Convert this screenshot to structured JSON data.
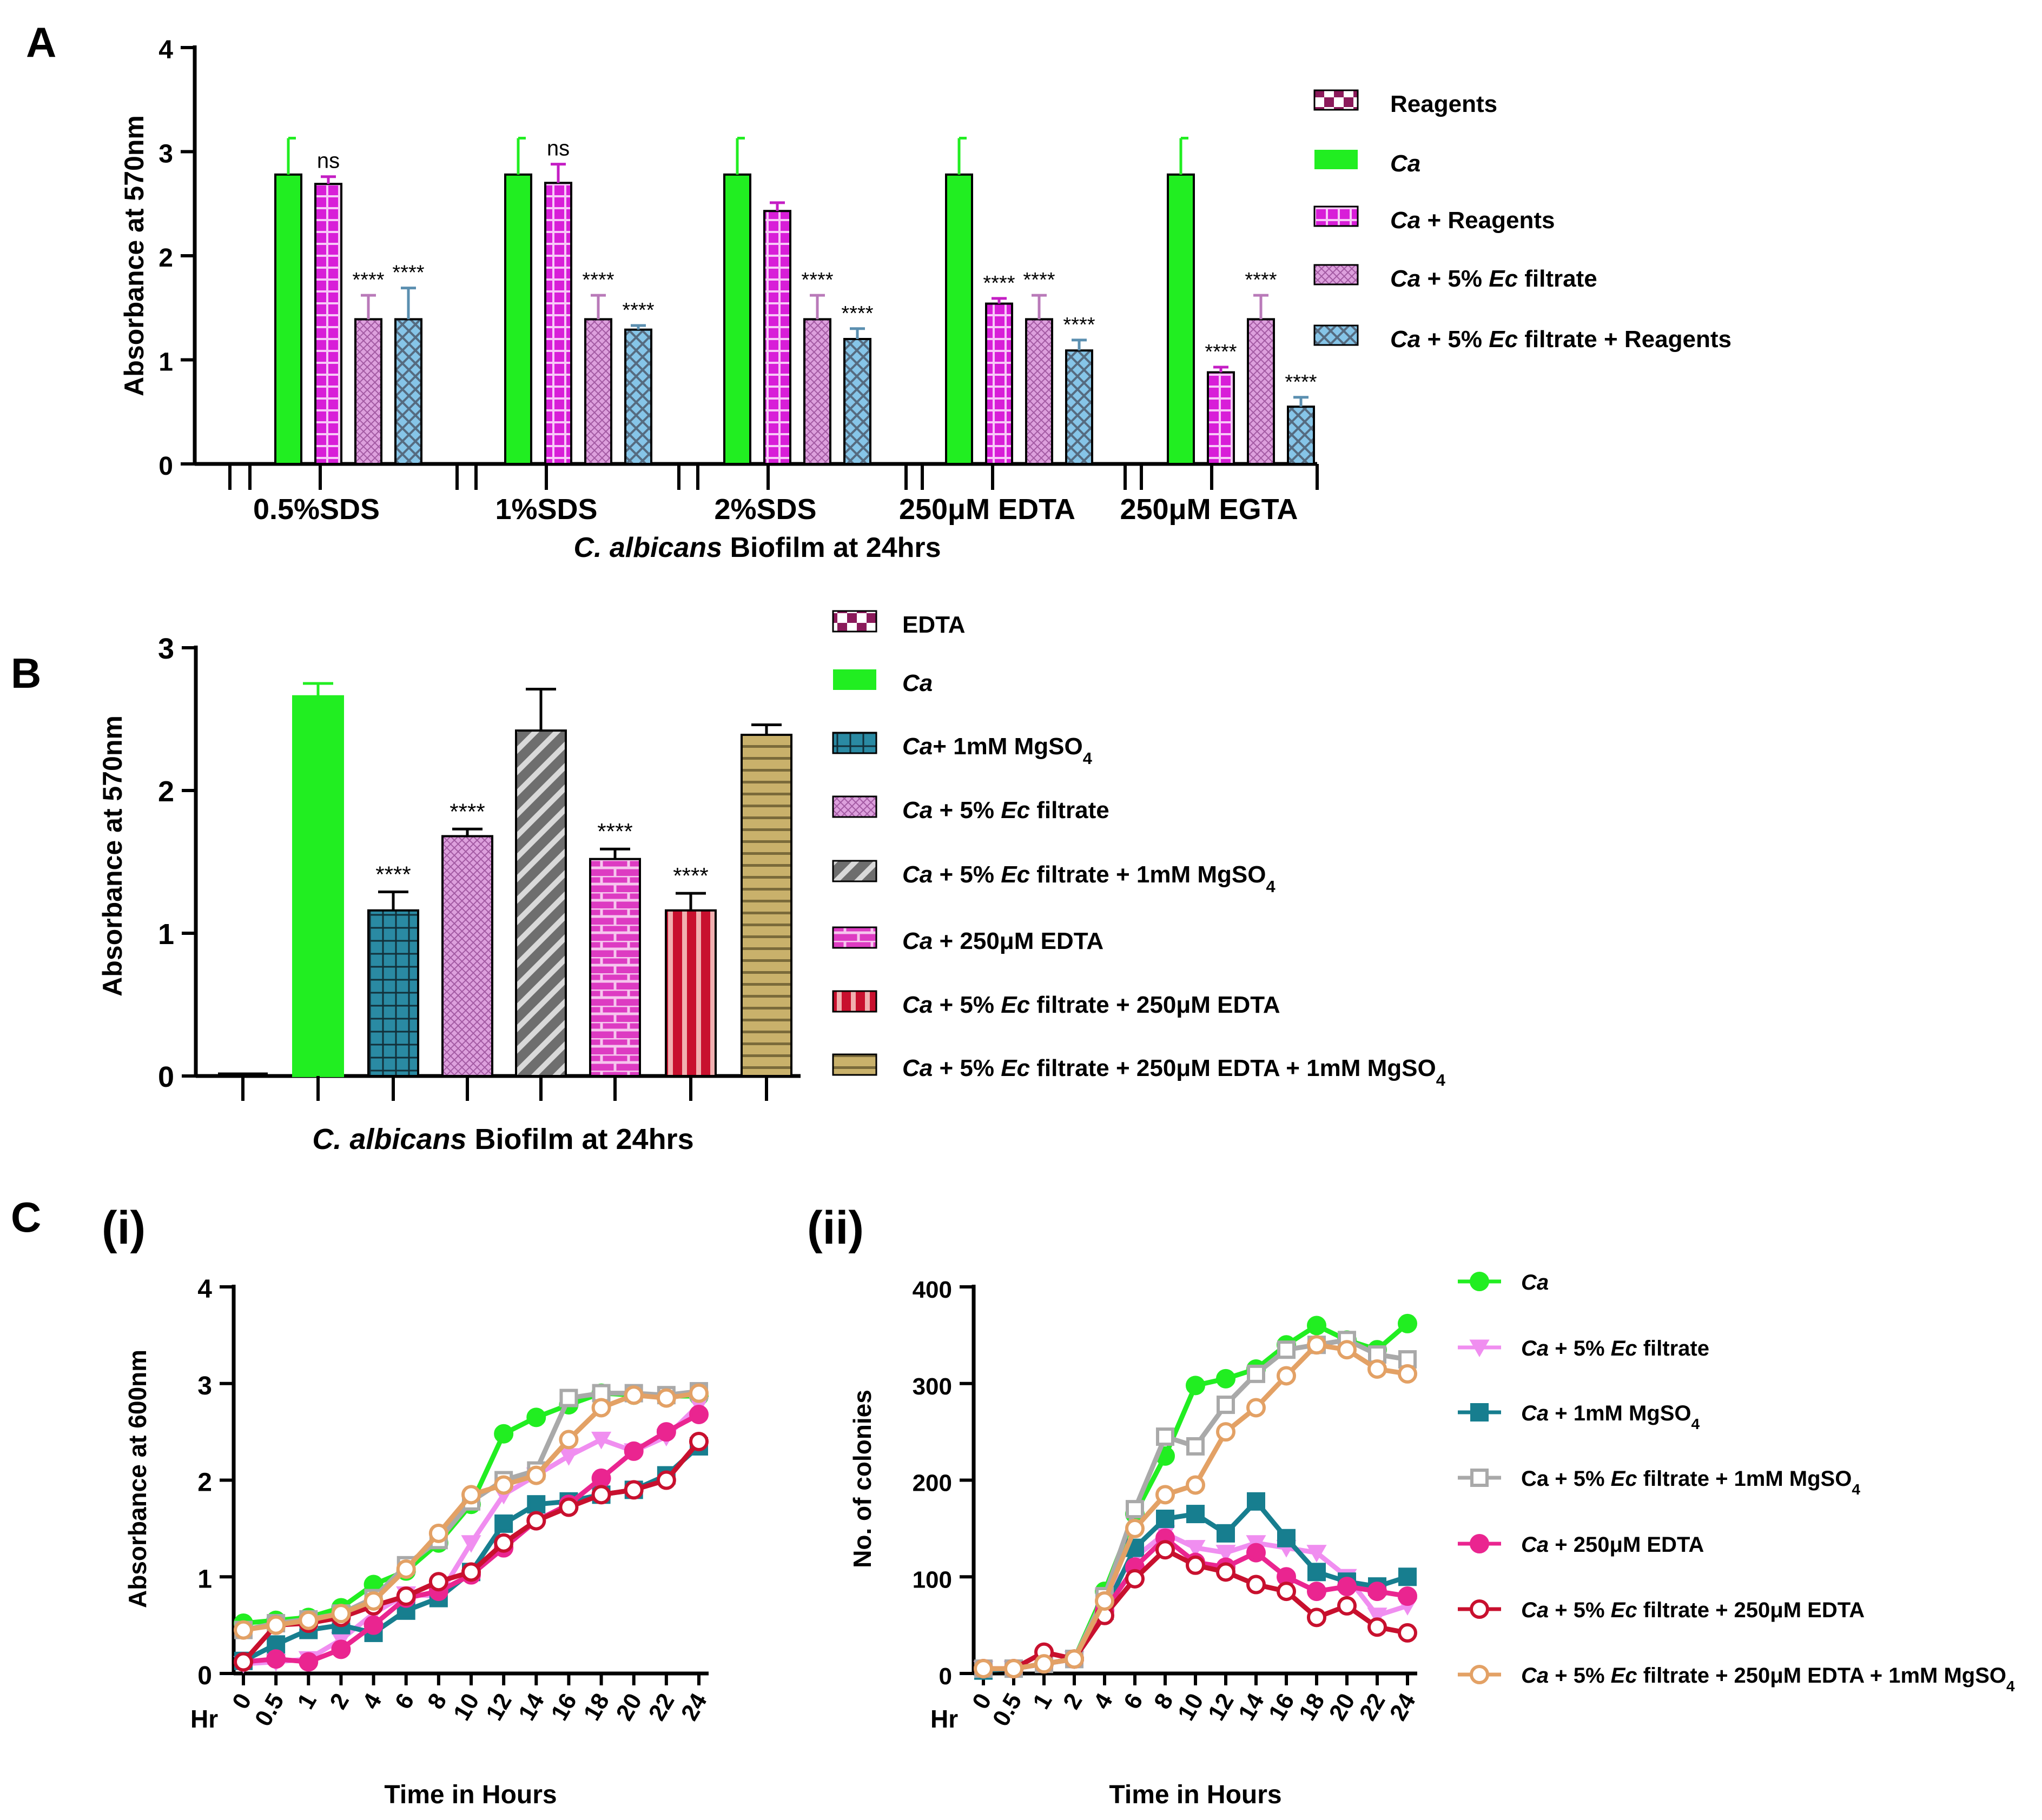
{
  "colors": {
    "ca": "#21ee21",
    "reagents": "#d81ed8",
    "filtrate": "#dda0dd",
    "filtrate_reagents": "#86c5e8",
    "mg": "#2a8aa3",
    "filtrate_mg": "#6e6e6e",
    "edta": "#dd3bc2",
    "filtrate_edta": "#c8102e",
    "all": "#c9b16b",
    "edta_blank": "#8b1a5a",
    "line_ca": "#21ee21",
    "line_filtrate": "#f08ef0",
    "line_mg": "#177e8f",
    "line_filtrate_mg": "#a9a9a9",
    "line_edta": "#ea2590",
    "line_filtrate_edta": "#c8102e",
    "line_all": "#e3a165"
  },
  "panel_labels": {
    "a": "A",
    "b": "B",
    "c": "C",
    "ci": "(i)",
    "cii": "(ii)"
  },
  "chart_data": [
    {
      "id": "A",
      "type": "bar",
      "title": "",
      "ylabel": "Absorbance at 570nm",
      "xlabel": "C. albicans Biofilm at 24hrs",
      "xlabel_italic": "C. albicans",
      "xlabel_rest": " Biofilm at 24hrs",
      "ylim": [
        0,
        4
      ],
      "yticks": [
        "0",
        "1",
        "2",
        "3",
        "4"
      ],
      "categories": [
        "0.5%SDS",
        "1%SDS",
        "2%SDS",
        "250μM EDTA",
        "250μM EGTA"
      ],
      "series": [
        {
          "name": "Reagents",
          "legend": [
            "Reagents"
          ],
          "values": [
            0,
            0,
            0,
            0,
            0
          ],
          "errors": [
            0,
            0,
            0,
            0,
            0
          ],
          "sig": [
            "",
            "",
            "",
            "",
            ""
          ]
        },
        {
          "name": "Ca",
          "legend": [
            "Ca"
          ],
          "values": [
            2.78,
            2.78,
            2.78,
            2.78,
            2.78
          ],
          "errors": [
            0.35,
            0.35,
            0.35,
            0.35,
            0.35
          ],
          "sig": [
            "",
            "",
            "",
            "",
            ""
          ]
        },
        {
          "name": "Ca + Reagents",
          "legend": [
            "Ca",
            " + Reagents"
          ],
          "values": [
            2.69,
            2.7,
            2.43,
            1.54,
            0.88
          ],
          "errors": [
            0.07,
            0.18,
            0.08,
            0.05,
            0.05
          ],
          "sig": [
            "ns",
            "ns",
            "",
            "****",
            "****"
          ]
        },
        {
          "name": "Ca + 5% Ec filtrate",
          "legend": [
            "Ca",
            " + 5% ",
            "Ec",
            " filtrate"
          ],
          "values": [
            1.39,
            1.39,
            1.39,
            1.39,
            1.39
          ],
          "errors": [
            0.23,
            0.23,
            0.23,
            0.23,
            0.23
          ],
          "sig": [
            "****",
            "****",
            "****",
            "****",
            "****"
          ]
        },
        {
          "name": "Ca + 5% Ec filtrate + Reagents",
          "legend": [
            "Ca",
            " + 5% ",
            "Ec",
            " filtrate + Reagents"
          ],
          "values": [
            1.39,
            1.29,
            1.2,
            1.09,
            0.55
          ],
          "errors": [
            0.3,
            0.04,
            0.1,
            0.1,
            0.09
          ],
          "sig": [
            "****",
            "****",
            "****",
            "****",
            "****"
          ]
        }
      ]
    },
    {
      "id": "B",
      "type": "bar",
      "ylabel": "Absorbance at 570nm",
      "xlabel": "C. albicans Biofilm at 24hrs",
      "xlabel_italic": "C. albicans",
      "xlabel_rest": " Biofilm at 24hrs",
      "ylim": [
        0,
        3
      ],
      "yticks": [
        "0",
        "1",
        "2",
        "3"
      ],
      "series": [
        {
          "name": "EDTA",
          "legend": [
            "EDTA"
          ],
          "value": 0.02,
          "error": 0,
          "sig": ""
        },
        {
          "name": "Ca",
          "legend": [
            "Ca"
          ],
          "value": 2.66,
          "error": 0.09,
          "sig": ""
        },
        {
          "name": "Ca+ 1mM MgSO4",
          "legend": [
            "Ca",
            "+ 1mM MgSO",
            "4"
          ],
          "value": 1.16,
          "error": 0.13,
          "sig": "****"
        },
        {
          "name": "Ca + 5% Ec filtrate",
          "legend": [
            "Ca",
            " + 5% ",
            "Ec",
            " filtrate"
          ],
          "value": 1.68,
          "error": 0.05,
          "sig": "****"
        },
        {
          "name": "Ca + 5% Ec filtrate + 1mM MgSO4",
          "legend": [
            "Ca",
            " + 5% ",
            "Ec",
            " filtrate + 1mM MgSO",
            "4"
          ],
          "value": 2.42,
          "error": 0.29,
          "sig": ""
        },
        {
          "name": "Ca + 250μM EDTA",
          "legend": [
            "Ca",
            " + 250μM EDTA"
          ],
          "value": 1.52,
          "error": 0.07,
          "sig": "****"
        },
        {
          "name": "Ca + 5% Ec filtrate + 250μM EDTA",
          "legend": [
            "Ca",
            " + 5% ",
            "Ec",
            " filtrate + 250μM EDTA"
          ],
          "value": 1.16,
          "error": 0.12,
          "sig": "****"
        },
        {
          "name": "Ca + 5% Ec filtrate + 250μM EDTA + 1mM MgSO4",
          "legend": [
            "Ca",
            " + 5% ",
            "Ec",
            " filtrate + 250μM EDTA + 1mM MgSO",
            "4"
          ],
          "value": 2.39,
          "error": 0.07,
          "sig": ""
        }
      ]
    },
    {
      "id": "C(i)",
      "type": "line",
      "ylabel": "Absorbance at 600nm",
      "xlabel": "Time in Hours",
      "x_prefix": "Hr",
      "x": [
        "0",
        "0.5",
        "1",
        "2",
        "4",
        "6",
        "8",
        "10",
        "12",
        "14",
        "16",
        "18",
        "20",
        "22",
        "24"
      ],
      "ylim": [
        0,
        4
      ],
      "yticks": [
        "0",
        "1",
        "2",
        "3",
        "4"
      ],
      "series": [
        {
          "name": "Ca",
          "values": [
            0.52,
            0.55,
            0.58,
            0.68,
            0.92,
            1.06,
            1.35,
            1.75,
            2.48,
            2.65,
            2.78,
            2.9,
            2.88,
            2.87,
            2.87
          ]
        },
        {
          "name": "Ca + 5% Ec filtrate",
          "values": [
            0.1,
            0.12,
            0.15,
            0.35,
            0.62,
            0.82,
            0.8,
            1.35,
            1.85,
            2.05,
            2.25,
            2.42,
            2.3,
            2.45,
            2.78
          ]
        },
        {
          "name": "Ca + 1mM MgSO4",
          "values": [
            0.13,
            0.3,
            0.45,
            0.5,
            0.42,
            0.65,
            0.78,
            1.05,
            1.55,
            1.75,
            1.78,
            1.85,
            1.9,
            2.05,
            2.35
          ]
        },
        {
          "name": "Ca + 5% Ec filtrate + 1mM MgSO4",
          "values": [
            0.45,
            0.52,
            0.56,
            0.62,
            0.78,
            1.12,
            1.38,
            1.78,
            2.0,
            2.1,
            2.85,
            2.9,
            2.9,
            2.88,
            2.92
          ]
        },
        {
          "name": "Ca + 250μM EDTA",
          "values": [
            0.12,
            0.15,
            0.12,
            0.25,
            0.5,
            0.78,
            0.85,
            1.02,
            1.3,
            1.58,
            1.75,
            2.02,
            2.3,
            2.5,
            2.68
          ]
        },
        {
          "name": "Ca + 5% Ec filtrate + 250μM EDTA",
          "values": [
            0.12,
            0.5,
            0.52,
            0.58,
            0.7,
            0.8,
            0.95,
            1.05,
            1.35,
            1.58,
            1.72,
            1.85,
            1.9,
            2.0,
            2.4
          ]
        },
        {
          "name": "Ca + 5% Ec filtrate + 250μM EDTA + 1mM MgSO4",
          "values": [
            0.45,
            0.5,
            0.55,
            0.62,
            0.75,
            1.08,
            1.45,
            1.85,
            1.95,
            2.05,
            2.42,
            2.75,
            2.88,
            2.85,
            2.9
          ]
        }
      ]
    },
    {
      "id": "C(ii)",
      "type": "line",
      "ylabel": "No. of colonies",
      "xlabel": "Time in Hours",
      "x_prefix": "Hr",
      "x": [
        "0",
        "0.5",
        "1",
        "2",
        "4",
        "6",
        "8",
        "10",
        "12",
        "14",
        "16",
        "18",
        "20",
        "22",
        "24"
      ],
      "ylim": [
        0,
        400
      ],
      "yticks": [
        "0",
        "100",
        "200",
        "300",
        "400"
      ],
      "series": [
        {
          "name": "Ca",
          "legend": [
            "Ca"
          ],
          "values": [
            5,
            5,
            10,
            15,
            85,
            165,
            225,
            298,
            305,
            315,
            340,
            360,
            345,
            335,
            362
          ]
        },
        {
          "name": "Ca + 5% Ec filtrate",
          "legend": [
            "Ca",
            " + 5% ",
            "Ec",
            " filtrate"
          ],
          "values": [
            5,
            5,
            10,
            15,
            80,
            120,
            145,
            130,
            125,
            135,
            130,
            125,
            100,
            60,
            70
          ]
        },
        {
          "name": "Ca + 1mM MgSO4",
          "legend": [
            "Ca",
            " + 1mM MgSO",
            "4"
          ],
          "values": [
            3,
            5,
            10,
            15,
            65,
            130,
            160,
            165,
            145,
            178,
            140,
            105,
            95,
            90,
            100
          ]
        },
        {
          "name": "Ca + 5% Ec filtrate + 1mM MgSO4",
          "legend": [
            "Ca + 5% ",
            "Ec",
            " filtrate + 1mM MgSO",
            "4"
          ],
          "values": [
            5,
            5,
            10,
            15,
            80,
            170,
            245,
            235,
            278,
            310,
            335,
            340,
            345,
            330,
            325
          ]
        },
        {
          "name": "Ca + 250μM EDTA",
          "legend": [
            "Ca",
            " + 250μM EDTA"
          ],
          "values": [
            5,
            5,
            10,
            15,
            65,
            110,
            140,
            115,
            110,
            125,
            100,
            85,
            90,
            85,
            80
          ]
        },
        {
          "name": "Ca + 5% Ec filtrate + 250μM EDTA",
          "legend": [
            "Ca",
            " + 5% ",
            "Ec",
            " filtrate + 250μM EDTA"
          ],
          "values": [
            5,
            5,
            22,
            15,
            60,
            98,
            128,
            112,
            105,
            92,
            85,
            58,
            70,
            48,
            42
          ]
        },
        {
          "name": "Ca + 5% Ec filtrate + 250μM EDTA + 1mM MgSO4",
          "legend": [
            "Ca",
            " + 5% ",
            "Ec",
            " filtrate + 250μM EDTA + 1mM MgSO",
            "4"
          ],
          "values": [
            5,
            5,
            10,
            15,
            75,
            150,
            185,
            195,
            250,
            275,
            308,
            340,
            335,
            315,
            310
          ]
        }
      ]
    }
  ]
}
